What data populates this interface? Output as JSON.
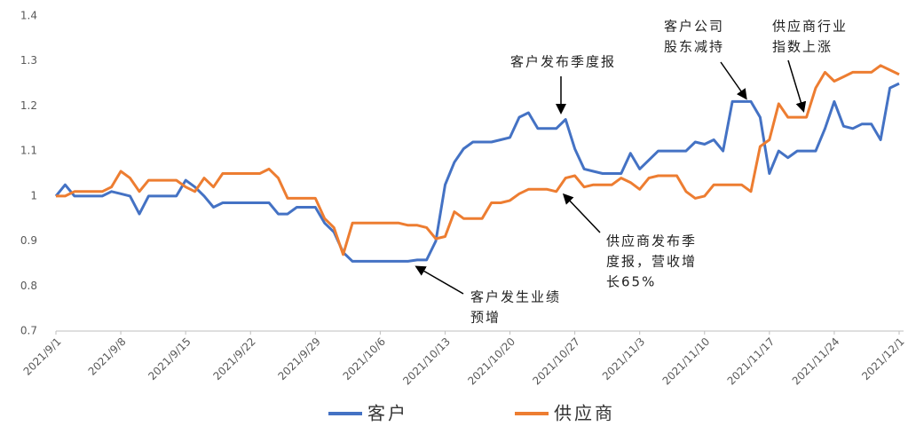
{
  "chart_data": {
    "type": "line",
    "categories": [
      "2021/9/1",
      null,
      null,
      null,
      null,
      null,
      null,
      "2021/9/8",
      null,
      null,
      null,
      null,
      null,
      null,
      "2021/9/15",
      null,
      null,
      null,
      null,
      null,
      null,
      "2021/9/22",
      null,
      null,
      null,
      null,
      null,
      null,
      "2021/9/29",
      null,
      null,
      null,
      null,
      null,
      null,
      "2021/10/6",
      null,
      null,
      null,
      null,
      null,
      null,
      "2021/10/13",
      null,
      null,
      null,
      null,
      null,
      null,
      "2021/10/20",
      null,
      null,
      null,
      null,
      null,
      null,
      "2021/10/27",
      null,
      null,
      null,
      null,
      null,
      null,
      "2021/11/3",
      null,
      null,
      null,
      null,
      null,
      null,
      "2021/11/10",
      null,
      null,
      null,
      null,
      null,
      null,
      "2021/11/17",
      null,
      null,
      null,
      null,
      null,
      null,
      "2021/11/24",
      null,
      null,
      null,
      null,
      null,
      null,
      "2021/12/1"
    ],
    "series": [
      {
        "name": "客户",
        "color": "#4472c4",
        "values": [
          1.0,
          1.025,
          1.0,
          1.0,
          1.0,
          1.0,
          1.01,
          1.005,
          1.0,
          0.96,
          1.0,
          1.0,
          1.0,
          1.0,
          1.035,
          1.02,
          1.0,
          0.975,
          0.985,
          0.985,
          0.985,
          0.985,
          0.985,
          0.985,
          0.96,
          0.96,
          0.975,
          0.975,
          0.975,
          0.94,
          0.92,
          0.875,
          0.855,
          0.855,
          0.855,
          0.855,
          0.855,
          0.855,
          0.855,
          0.858,
          0.858,
          0.9,
          1.025,
          1.075,
          1.105,
          1.12,
          1.12,
          1.12,
          1.125,
          1.13,
          1.175,
          1.185,
          1.15,
          1.15,
          1.15,
          1.17,
          1.105,
          1.06,
          1.055,
          1.05,
          1.05,
          1.05,
          1.095,
          1.06,
          1.08,
          1.1,
          1.1,
          1.1,
          1.1,
          1.12,
          1.115,
          1.125,
          1.1,
          1.21,
          1.21,
          1.21,
          1.175,
          1.05,
          1.1,
          1.085,
          1.1,
          1.1,
          1.1,
          1.15,
          1.21,
          1.155,
          1.15,
          1.16,
          1.16,
          1.125,
          1.24,
          1.25
        ]
      },
      {
        "name": "供应商",
        "color": "#ed7d31",
        "values": [
          1.0,
          1.0,
          1.01,
          1.01,
          1.01,
          1.01,
          1.02,
          1.055,
          1.04,
          1.01,
          1.035,
          1.035,
          1.035,
          1.035,
          1.02,
          1.01,
          1.04,
          1.02,
          1.05,
          1.05,
          1.05,
          1.05,
          1.05,
          1.06,
          1.04,
          0.995,
          0.995,
          0.995,
          0.995,
          0.95,
          0.93,
          0.87,
          0.94,
          0.94,
          0.94,
          0.94,
          0.94,
          0.94,
          0.935,
          0.935,
          0.93,
          0.905,
          0.91,
          0.965,
          0.95,
          0.95,
          0.95,
          0.985,
          0.985,
          0.99,
          1.005,
          1.015,
          1.015,
          1.015,
          1.01,
          1.04,
          1.045,
          1.02,
          1.025,
          1.025,
          1.025,
          1.04,
          1.03,
          1.015,
          1.04,
          1.045,
          1.045,
          1.045,
          1.01,
          0.995,
          1.0,
          1.025,
          1.025,
          1.025,
          1.025,
          1.01,
          1.11,
          1.125,
          1.205,
          1.175,
          1.175,
          1.175,
          1.24,
          1.275,
          1.255,
          1.265,
          1.275,
          1.275,
          1.275,
          1.29,
          1.28,
          1.27
        ]
      }
    ],
    "ylim": [
      0.7,
      1.4
    ],
    "yticks": [
      0.7,
      0.8,
      0.9,
      1,
      1.1,
      1.2,
      1.3,
      1.4
    ],
    "grid": false,
    "legend": "bottom",
    "annotations": [
      {
        "lines": [
          "客户发布季度报"
        ]
      },
      {
        "lines": [
          "客户公司",
          "股东减持"
        ]
      },
      {
        "lines": [
          "供应商行业",
          "指数上涨"
        ]
      },
      {
        "lines": [
          "供应商发布季",
          "度报，营收增",
          "长65%"
        ]
      },
      {
        "lines": [
          "客户发生业绩",
          "预增"
        ]
      }
    ]
  }
}
